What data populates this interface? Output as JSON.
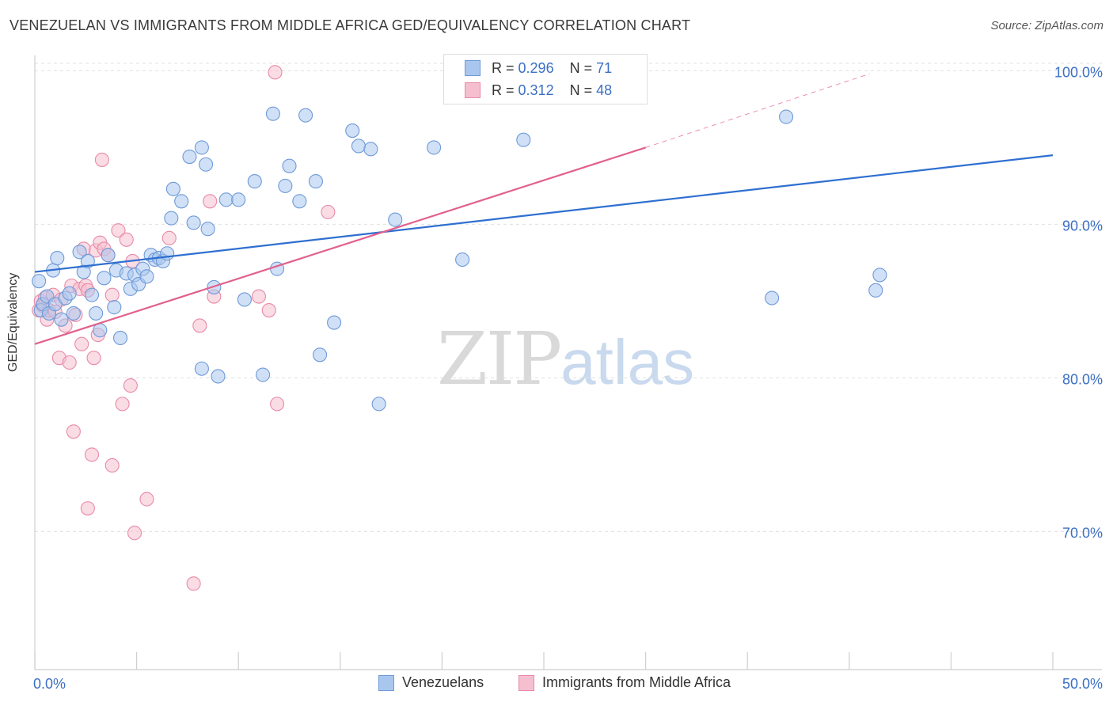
{
  "header": {
    "title": "VENEZUELAN VS IMMIGRANTS FROM MIDDLE AFRICA GED/EQUIVALENCY CORRELATION CHART",
    "source": "Source: ZipAtlas.com"
  },
  "watermark": {
    "zip": "ZIP",
    "atlas": "atlas"
  },
  "legend_top": [
    {
      "r_label": "R =",
      "r_value": "0.296",
      "n_label": "N =",
      "n_value": "71"
    },
    {
      "r_label": "R =",
      "r_value": "0.312",
      "n_label": "N =",
      "n_value": "48"
    }
  ],
  "legend_bottom": [
    {
      "label": "Venezuelans"
    },
    {
      "label": "Immigrants from Middle Africa"
    }
  ],
  "colors": {
    "series1_fill": "#a9c7ee",
    "series1_stroke": "#6f9ad8",
    "series1_line": "#2f6fd0",
    "series2_fill": "#f5bfd0",
    "series2_stroke": "#e88aa8",
    "series2_line": "#e2608d",
    "tick_text": "#3b6fc4",
    "grid": "#e0e0e0"
  },
  "chart_data": {
    "type": "scatter",
    "title": "VENEZUELAN VS IMMIGRANTS FROM MIDDLE AFRICA GED/EQUIVALENCY CORRELATION CHART",
    "xlabel": "",
    "ylabel": "GED/Equivalency",
    "xlim": [
      0,
      50
    ],
    "ylim": [
      61,
      101
    ],
    "x_tick_labels": [
      "0.0%",
      "50.0%"
    ],
    "y_ticks": [
      70,
      80,
      90,
      100
    ],
    "y_tick_labels": [
      "70.0%",
      "80.0%",
      "90.0%",
      "100.0%"
    ],
    "grid": true,
    "legend_position": "bottom",
    "series": [
      {
        "name": "Venezuelans",
        "r": 0.296,
        "n": 71,
        "trend": {
          "x": [
            0,
            50
          ],
          "y": [
            86.9,
            94.5
          ]
        },
        "points": [
          [
            0.2,
            86.3
          ],
          [
            0.3,
            84.4
          ],
          [
            0.4,
            84.8
          ],
          [
            0.6,
            85.3
          ],
          [
            0.7,
            84.2
          ],
          [
            0.9,
            87.0
          ],
          [
            1.0,
            84.8
          ],
          [
            1.1,
            87.8
          ],
          [
            1.3,
            83.8
          ],
          [
            1.5,
            85.2
          ],
          [
            1.7,
            85.5
          ],
          [
            1.9,
            84.2
          ],
          [
            2.2,
            88.2
          ],
          [
            2.4,
            86.9
          ],
          [
            2.6,
            87.6
          ],
          [
            2.8,
            85.4
          ],
          [
            3.0,
            84.2
          ],
          [
            3.2,
            83.1
          ],
          [
            3.4,
            86.5
          ],
          [
            3.6,
            88.0
          ],
          [
            3.9,
            84.6
          ],
          [
            4.0,
            87.0
          ],
          [
            4.2,
            82.6
          ],
          [
            4.5,
            86.8
          ],
          [
            4.7,
            85.8
          ],
          [
            4.9,
            86.7
          ],
          [
            5.1,
            86.1
          ],
          [
            5.3,
            87.1
          ],
          [
            5.5,
            86.6
          ],
          [
            5.7,
            88.0
          ],
          [
            5.9,
            87.7
          ],
          [
            6.1,
            87.8
          ],
          [
            6.3,
            87.6
          ],
          [
            6.5,
            88.1
          ],
          [
            6.7,
            90.4
          ],
          [
            6.8,
            92.3
          ],
          [
            7.2,
            91.5
          ],
          [
            7.6,
            94.4
          ],
          [
            7.8,
            90.1
          ],
          [
            8.2,
            95.0
          ],
          [
            8.4,
            93.9
          ],
          [
            8.5,
            89.7
          ],
          [
            8.8,
            85.9
          ],
          [
            8.2,
            80.6
          ],
          [
            9.0,
            80.1
          ],
          [
            9.4,
            91.6
          ],
          [
            10.0,
            91.6
          ],
          [
            10.3,
            85.1
          ],
          [
            10.8,
            92.8
          ],
          [
            11.2,
            80.2
          ],
          [
            11.7,
            97.2
          ],
          [
            11.9,
            87.1
          ],
          [
            12.3,
            92.5
          ],
          [
            12.5,
            93.8
          ],
          [
            13.0,
            91.5
          ],
          [
            13.3,
            97.1
          ],
          [
            13.8,
            92.8
          ],
          [
            14.0,
            81.5
          ],
          [
            14.7,
            83.6
          ],
          [
            15.6,
            96.1
          ],
          [
            15.9,
            95.1
          ],
          [
            16.5,
            94.9
          ],
          [
            16.9,
            78.3
          ],
          [
            17.7,
            90.3
          ],
          [
            19.6,
            95.0
          ],
          [
            21.0,
            87.7
          ],
          [
            24.0,
            95.5
          ],
          [
            36.2,
            85.2
          ],
          [
            36.9,
            97.0
          ],
          [
            41.3,
            85.7
          ],
          [
            41.5,
            86.7
          ]
        ]
      },
      {
        "name": "Immigrants from Middle Africa",
        "r": 0.312,
        "n": 48,
        "trend": {
          "x": [
            0,
            30
          ],
          "y": [
            82.2,
            95.0
          ]
        },
        "trend_dashed": {
          "x": [
            30,
            41
          ],
          "y": [
            95.0,
            99.8
          ]
        },
        "points": [
          [
            0.2,
            84.4
          ],
          [
            0.3,
            85.0
          ],
          [
            0.4,
            84.7
          ],
          [
            0.5,
            85.2
          ],
          [
            0.6,
            83.8
          ],
          [
            0.7,
            84.4
          ],
          [
            0.9,
            85.4
          ],
          [
            1.0,
            84.3
          ],
          [
            1.2,
            81.3
          ],
          [
            1.3,
            85.1
          ],
          [
            1.5,
            83.4
          ],
          [
            1.7,
            81.0
          ],
          [
            1.8,
            86.0
          ],
          [
            2.0,
            84.1
          ],
          [
            2.2,
            85.8
          ],
          [
            2.3,
            82.2
          ],
          [
            2.4,
            88.4
          ],
          [
            2.5,
            86.0
          ],
          [
            2.6,
            85.7
          ],
          [
            2.9,
            81.3
          ],
          [
            3.0,
            88.3
          ],
          [
            3.1,
            82.8
          ],
          [
            3.2,
            88.8
          ],
          [
            3.4,
            88.4
          ],
          [
            3.6,
            88.0
          ],
          [
            3.8,
            85.4
          ],
          [
            4.1,
            89.6
          ],
          [
            4.3,
            78.3
          ],
          [
            4.5,
            89.0
          ],
          [
            4.7,
            79.5
          ],
          [
            4.8,
            87.6
          ],
          [
            1.9,
            76.5
          ],
          [
            2.8,
            75.0
          ],
          [
            3.8,
            74.3
          ],
          [
            2.6,
            71.5
          ],
          [
            5.5,
            72.1
          ],
          [
            4.9,
            69.9
          ],
          [
            3.3,
            94.2
          ],
          [
            7.8,
            66.6
          ],
          [
            8.1,
            83.4
          ],
          [
            8.6,
            91.5
          ],
          [
            8.8,
            85.3
          ],
          [
            11.0,
            85.3
          ],
          [
            11.5,
            84.4
          ],
          [
            11.8,
            99.9
          ],
          [
            11.9,
            78.3
          ],
          [
            14.4,
            90.8
          ],
          [
            6.6,
            89.1
          ]
        ]
      }
    ]
  }
}
